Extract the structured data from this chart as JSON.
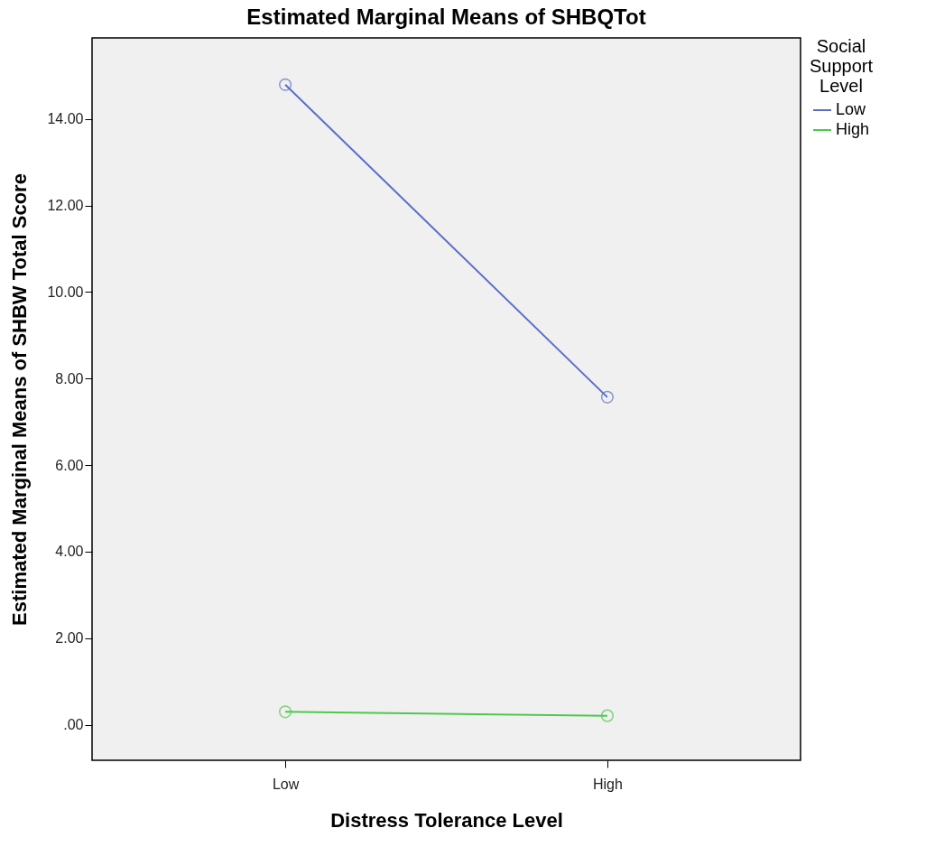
{
  "chart_data": {
    "type": "line",
    "title": "Estimated Marginal Means of SHBQTot",
    "xlabel": "Distress Tolerance Level",
    "ylabel": "Estimated Marginal Means of SHBW Total Score",
    "legend_title": "Social Support Level",
    "legend": "top right",
    "grid": false,
    "marker": "circle",
    "categories": [
      "Low",
      "High"
    ],
    "series": [
      {
        "name": "Low",
        "color": "#5a6ec6",
        "values": [
          14.79,
          7.57
        ]
      },
      {
        "name": "High",
        "color": "#4cc94c",
        "values": [
          0.3,
          0.21
        ]
      }
    ],
    "ylim": [
      -0.82,
      15.87
    ],
    "yticks": [
      {
        "value": 0,
        "label": ".00"
      },
      {
        "value": 2,
        "label": "2.00"
      },
      {
        "value": 4,
        "label": "4.00"
      },
      {
        "value": 6,
        "label": "6.00"
      },
      {
        "value": 8,
        "label": "8.00"
      },
      {
        "value": 10,
        "label": "10.00"
      },
      {
        "value": 12,
        "label": "12.00"
      },
      {
        "value": 14,
        "label": "14.00"
      }
    ]
  }
}
